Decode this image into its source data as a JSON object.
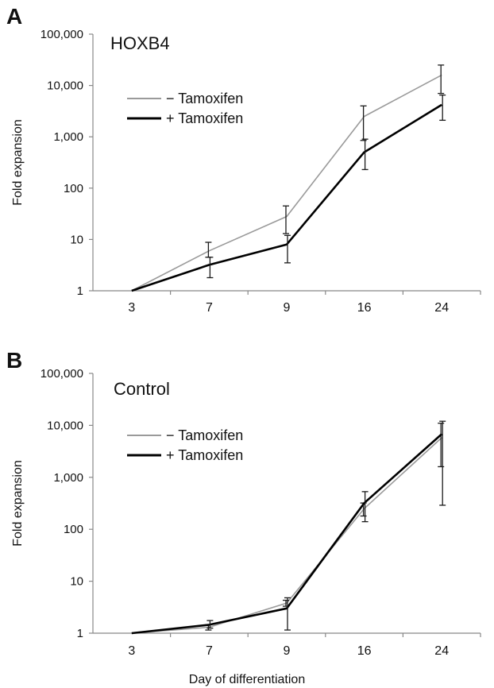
{
  "chart_data": [
    {
      "type": "line",
      "panel_label": "A",
      "title": "HOXB4",
      "ylabel": "Fold expansion",
      "xlabel": "",
      "x_categories": [
        "3",
        "7",
        "9",
        "16",
        "24"
      ],
      "y_scale": "log",
      "ylim": [
        1,
        100000
      ],
      "y_ticks": [
        "1",
        "10",
        "100",
        "1,000",
        "10,000",
        "100,000"
      ],
      "y_tick_values": [
        1,
        10,
        100,
        1000,
        10000,
        100000
      ],
      "grid": false,
      "legend_position": "top-left",
      "series": [
        {
          "name": "− Tamoxifen",
          "color": "#9a9a9a",
          "values": [
            1,
            6,
            28,
            2500,
            16000
          ],
          "err_low": [
            null,
            4.5,
            13,
            850,
            7000
          ],
          "err_high": [
            null,
            8.8,
            45,
            4000,
            25000
          ]
        },
        {
          "name": "+ Tamoxifen",
          "color": "#000000",
          "values": [
            1,
            3.2,
            8,
            500,
            4200
          ],
          "err_low": [
            null,
            1.8,
            3.5,
            230,
            2100
          ],
          "err_high": [
            null,
            4.5,
            12,
            900,
            6500
          ]
        }
      ]
    },
    {
      "type": "line",
      "panel_label": "B",
      "title": "Control",
      "ylabel": "Fold expansion",
      "xlabel": "Day of differentiation",
      "x_categories": [
        "3",
        "7",
        "9",
        "16",
        "24"
      ],
      "y_scale": "log",
      "ylim": [
        1,
        100000
      ],
      "y_ticks": [
        "1",
        "10",
        "100",
        "1,000",
        "10,000",
        "100,000"
      ],
      "y_tick_values": [
        1,
        10,
        100,
        1000,
        10000,
        100000
      ],
      "grid": false,
      "legend_position": "top-left",
      "series": [
        {
          "name": "− Tamoxifen",
          "color": "#9a9a9a",
          "values": [
            1,
            1.3,
            3.8,
            250,
            5800
          ],
          "err_low": [
            null,
            1.15,
            3.3,
            180,
            1600
          ],
          "err_high": [
            null,
            1.45,
            4.3,
            320,
            11000
          ]
        },
        {
          "name": "+ Tamoxifen",
          "color": "#000000",
          "values": [
            1,
            1.45,
            3,
            320,
            6800
          ],
          "err_low": [
            null,
            1.25,
            1.15,
            140,
            290
          ],
          "err_high": [
            null,
            1.75,
            4.8,
            530,
            12000
          ]
        }
      ]
    }
  ]
}
